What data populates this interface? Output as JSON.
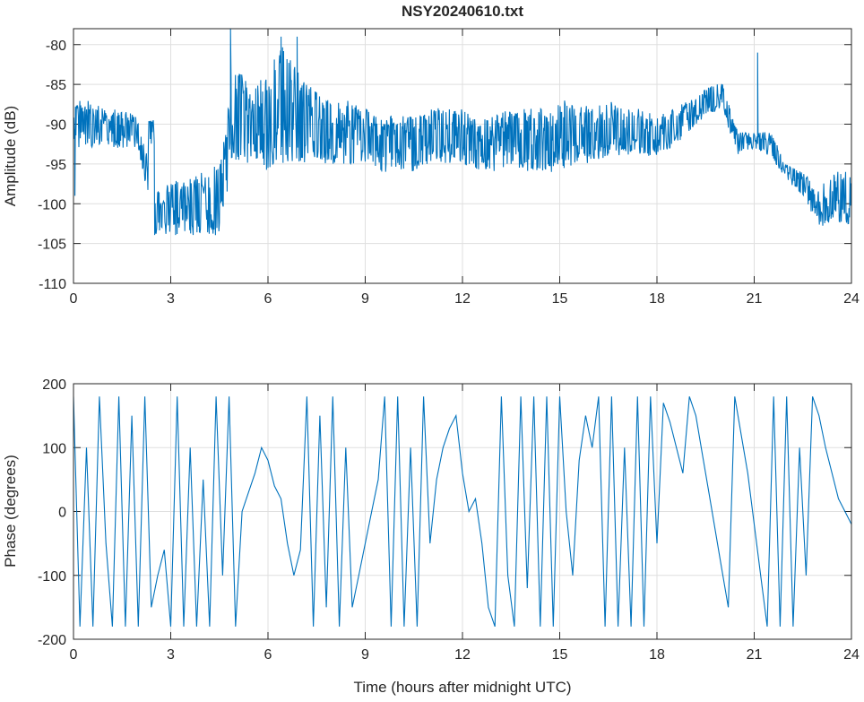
{
  "chart_data": [
    {
      "type": "line",
      "title": "NSY20240610.txt",
      "xlabel": "",
      "ylabel": "Amplitude (dB)",
      "xlim": [
        0,
        24
      ],
      "ylim": [
        -110,
        -78
      ],
      "xticks": [
        0,
        3,
        6,
        9,
        12,
        15,
        18,
        21,
        24
      ],
      "yticks": [
        -110,
        -105,
        -100,
        -95,
        -90,
        -85,
        -80
      ],
      "grid": true,
      "color": "#0072bd",
      "note": "values are approximate noise envelope (min/max) sampled every 0.5 h",
      "x_step": 0.5,
      "envelope_high": [
        -87,
        -87,
        -88,
        -88,
        -89,
        -98,
        -97,
        -97,
        -96,
        -95,
        -82,
        -86,
        -83,
        -80,
        -84,
        -86,
        -87,
        -87,
        -88,
        -89,
        -89,
        -89,
        -88,
        -88,
        -88,
        -89,
        -89,
        -88,
        -88,
        -88,
        -87,
        -87,
        -88,
        -87,
        -88,
        -88,
        -89,
        -88,
        -87,
        -85.5,
        -84.5,
        -91,
        -91,
        -91,
        -95,
        -96,
        -98,
        -96,
        -95
      ],
      "envelope_low": [
        -93,
        -93,
        -93,
        -93,
        -93,
        -104,
        -104,
        -104,
        -104,
        -104,
        -95,
        -95,
        -96,
        -95,
        -95,
        -95,
        -95,
        -95,
        -95,
        -96,
        -96,
        -96,
        -95,
        -95,
        -95,
        -96,
        -96,
        -95,
        -96,
        -96,
        -96,
        -95,
        -95,
        -94,
        -94,
        -94,
        -94,
        -93,
        -91,
        -89,
        -88,
        -94,
        -93,
        -94,
        -97,
        -99,
        -103,
        -102,
        -103
      ],
      "spikes": [
        [
          0.05,
          -99
        ],
        [
          4.85,
          -78
        ],
        [
          6.4,
          -79
        ],
        [
          6.9,
          -79
        ],
        [
          21.1,
          -81
        ]
      ]
    },
    {
      "type": "line",
      "title": "",
      "xlabel": "Time (hours after midnight UTC)",
      "ylabel": "Phase (degrees)",
      "xlim": [
        0,
        24
      ],
      "ylim": [
        -200,
        200
      ],
      "xticks": [
        0,
        3,
        6,
        9,
        12,
        15,
        18,
        21,
        24
      ],
      "yticks": [
        -200,
        -100,
        0,
        100,
        200
      ],
      "grid": true,
      "color": "#0072bd",
      "x_step": 0.2,
      "values": [
        180,
        -180,
        100,
        -180,
        180,
        -50,
        -180,
        180,
        -180,
        150,
        -180,
        180,
        -150,
        -100,
        -60,
        -180,
        180,
        -180,
        100,
        -180,
        50,
        -180,
        180,
        -100,
        180,
        -180,
        0,
        30,
        60,
        100,
        80,
        40,
        20,
        -50,
        -100,
        -60,
        180,
        -180,
        150,
        -150,
        180,
        -180,
        100,
        -150,
        -100,
        -50,
        0,
        50,
        180,
        -180,
        180,
        -180,
        100,
        -180,
        180,
        -50,
        50,
        100,
        130,
        150,
        60,
        0,
        20,
        -50,
        -150,
        -180,
        180,
        -100,
        -180,
        180,
        -120,
        180,
        -180,
        180,
        -180,
        180,
        0,
        -100,
        80,
        150,
        100,
        180,
        -180,
        180,
        -180,
        100,
        -180,
        180,
        -180,
        180,
        -50,
        170,
        140,
        100,
        60,
        180,
        150,
        90,
        30,
        -30,
        -90,
        -150,
        180,
        120,
        60,
        -20,
        -100,
        -180,
        180,
        -180,
        180,
        -180,
        100,
        -100,
        180,
        150,
        100,
        60,
        20,
        0,
        -20
      ]
    }
  ]
}
